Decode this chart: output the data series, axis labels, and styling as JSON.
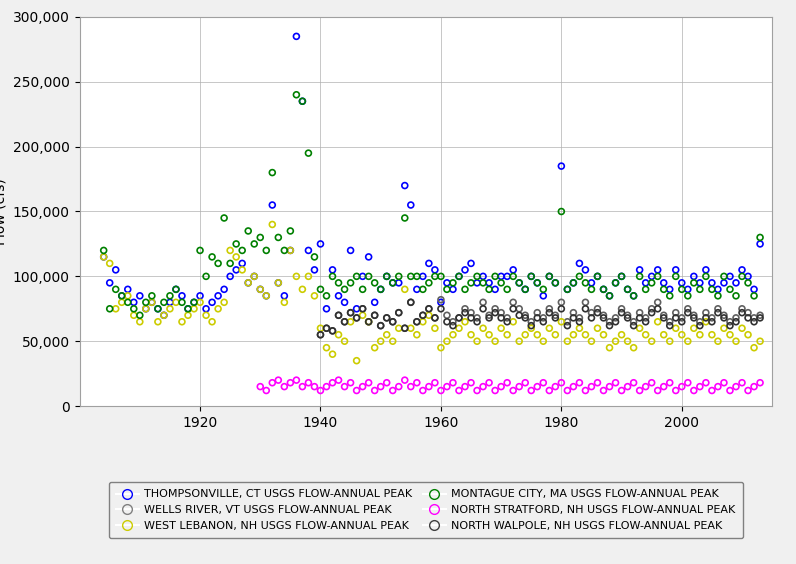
{
  "xlabel": "",
  "xlim": [
    1900,
    2015
  ],
  "ylim": [
    0,
    300000
  ],
  "yticks": [
    0,
    50000,
    100000,
    150000,
    200000,
    250000,
    300000
  ],
  "ytick_labels": [
    "0",
    "50,000",
    "100,000",
    "150,000",
    "200,000",
    "250,000",
    "300,000"
  ],
  "xticks": [
    1920,
    1940,
    1960,
    1980,
    2000
  ],
  "background_color": "#f0f0f0",
  "plot_bg_color": "#ffffff",
  "series": [
    {
      "name": "THOMPSONVILLE, CT USGS FLOW-ANNUAL PEAK",
      "color": "blue",
      "marker": "o",
      "years": [
        1904,
        1905,
        1906,
        1907,
        1908,
        1909,
        1910,
        1911,
        1912,
        1913,
        1914,
        1915,
        1916,
        1917,
        1918,
        1919,
        1920,
        1921,
        1922,
        1923,
        1924,
        1925,
        1926,
        1927,
        1928,
        1929,
        1930,
        1931,
        1932,
        1933,
        1934,
        1935,
        1936,
        1937,
        1938,
        1939,
        1940,
        1941,
        1942,
        1943,
        1944,
        1945,
        1946,
        1947,
        1948,
        1949,
        1950,
        1951,
        1952,
        1953,
        1954,
        1955,
        1956,
        1957,
        1958,
        1959,
        1960,
        1961,
        1962,
        1963,
        1964,
        1965,
        1966,
        1967,
        1968,
        1969,
        1970,
        1971,
        1972,
        1973,
        1974,
        1975,
        1976,
        1977,
        1978,
        1979,
        1980,
        1981,
        1982,
        1983,
        1984,
        1985,
        1986,
        1987,
        1988,
        1989,
        1990,
        1991,
        1992,
        1993,
        1994,
        1995,
        1996,
        1997,
        1998,
        1999,
        2000,
        2001,
        2002,
        2003,
        2004,
        2005,
        2006,
        2007,
        2008,
        2009,
        2010,
        2011,
        2012,
        2013
      ],
      "values": [
        115000,
        95000,
        105000,
        85000,
        90000,
        80000,
        85000,
        75000,
        80000,
        75000,
        70000,
        80000,
        90000,
        85000,
        75000,
        80000,
        85000,
        75000,
        80000,
        85000,
        90000,
        100000,
        105000,
        110000,
        95000,
        100000,
        90000,
        85000,
        155000,
        95000,
        85000,
        120000,
        285000,
        235000,
        120000,
        105000,
        125000,
        75000,
        105000,
        85000,
        80000,
        120000,
        75000,
        100000,
        115000,
        80000,
        90000,
        100000,
        95000,
        95000,
        170000,
        155000,
        90000,
        100000,
        110000,
        105000,
        80000,
        95000,
        90000,
        100000,
        105000,
        110000,
        95000,
        100000,
        95000,
        90000,
        100000,
        100000,
        105000,
        95000,
        90000,
        100000,
        95000,
        85000,
        100000,
        95000,
        185000,
        90000,
        95000,
        110000,
        105000,
        95000,
        100000,
        90000,
        85000,
        95000,
        100000,
        90000,
        85000,
        105000,
        95000,
        100000,
        105000,
        95000,
        90000,
        105000,
        95000,
        90000,
        100000,
        95000,
        105000,
        95000,
        90000,
        95000,
        100000,
        95000,
        105000,
        100000,
        90000,
        125000
      ]
    },
    {
      "name": "WELLS RIVER, VT USGS FLOW-ANNUAL PEAK",
      "color": "#606060",
      "marker": "o",
      "years": [
        1940,
        1941,
        1942,
        1943,
        1944,
        1945,
        1946,
        1947,
        1948,
        1949,
        1950,
        1951,
        1952,
        1953,
        1954,
        1955,
        1956,
        1957,
        1958,
        1959,
        1960,
        1961,
        1962,
        1963,
        1964,
        1965,
        1966,
        1967,
        1968,
        1969,
        1970,
        1971,
        1972,
        1973,
        1974,
        1975,
        1976,
        1977,
        1978,
        1979,
        1980,
        1981,
        1982,
        1983,
        1984,
        1985,
        1986,
        1987,
        1988,
        1989,
        1990,
        1991,
        1992,
        1993,
        1994,
        1995,
        1996,
        1997,
        1998,
        1999,
        2000,
        2001,
        2002,
        2003,
        2004,
        2005,
        2006,
        2007,
        2008,
        2009,
        2010,
        2011,
        2012,
        2013
      ],
      "values": [
        55000,
        60000,
        58000,
        70000,
        65000,
        72000,
        68000,
        75000,
        65000,
        70000,
        62000,
        68000,
        65000,
        72000,
        60000,
        80000,
        65000,
        70000,
        75000,
        68000,
        82000,
        70000,
        65000,
        68000,
        75000,
        72000,
        68000,
        80000,
        70000,
        75000,
        72000,
        68000,
        80000,
        75000,
        70000,
        65000,
        72000,
        68000,
        75000,
        70000,
        80000,
        65000,
        72000,
        68000,
        80000,
        72000,
        75000,
        70000,
        65000,
        68000,
        75000,
        70000,
        65000,
        72000,
        68000,
        75000,
        80000,
        70000,
        65000,
        72000,
        68000,
        75000,
        70000,
        65000,
        72000,
        68000,
        75000,
        70000,
        65000,
        68000,
        75000,
        72000,
        68000,
        70000
      ]
    },
    {
      "name": "WEST LEBANON, NH USGS FLOW-ANNUAL PEAK",
      "color": "#cccc00",
      "marker": "o",
      "years": [
        1904,
        1905,
        1906,
        1907,
        1908,
        1909,
        1910,
        1911,
        1912,
        1913,
        1914,
        1915,
        1916,
        1917,
        1918,
        1919,
        1920,
        1921,
        1922,
        1923,
        1924,
        1925,
        1926,
        1927,
        1928,
        1929,
        1930,
        1931,
        1932,
        1933,
        1934,
        1935,
        1936,
        1937,
        1938,
        1939,
        1940,
        1941,
        1942,
        1943,
        1944,
        1945,
        1946,
        1947,
        1948,
        1949,
        1950,
        1951,
        1952,
        1953,
        1954,
        1955,
        1956,
        1957,
        1958,
        1959,
        1960,
        1961,
        1962,
        1963,
        1964,
        1965,
        1966,
        1967,
        1968,
        1969,
        1970,
        1971,
        1972,
        1973,
        1974,
        1975,
        1976,
        1977,
        1978,
        1979,
        1980,
        1981,
        1982,
        1983,
        1984,
        1985,
        1986,
        1987,
        1988,
        1989,
        1990,
        1991,
        1992,
        1993,
        1994,
        1995,
        1996,
        1997,
        1998,
        1999,
        2000,
        2001,
        2002,
        2003,
        2004,
        2005,
        2006,
        2007,
        2008,
        2009,
        2010,
        2011,
        2012,
        2013
      ],
      "values": [
        115000,
        110000,
        75000,
        80000,
        85000,
        70000,
        65000,
        75000,
        80000,
        65000,
        70000,
        75000,
        80000,
        65000,
        70000,
        75000,
        80000,
        70000,
        65000,
        75000,
        80000,
        120000,
        115000,
        105000,
        95000,
        100000,
        90000,
        85000,
        140000,
        95000,
        80000,
        120000,
        100000,
        90000,
        100000,
        85000,
        60000,
        45000,
        40000,
        55000,
        50000,
        65000,
        35000,
        70000,
        65000,
        45000,
        50000,
        55000,
        50000,
        60000,
        90000,
        60000,
        55000,
        65000,
        70000,
        60000,
        45000,
        50000,
        55000,
        60000,
        65000,
        55000,
        50000,
        60000,
        55000,
        50000,
        60000,
        55000,
        65000,
        50000,
        55000,
        60000,
        55000,
        50000,
        60000,
        55000,
        65000,
        50000,
        55000,
        60000,
        55000,
        50000,
        60000,
        55000,
        45000,
        50000,
        55000,
        50000,
        45000,
        60000,
        55000,
        50000,
        65000,
        55000,
        50000,
        60000,
        55000,
        50000,
        60000,
        55000,
        65000,
        55000,
        50000,
        60000,
        55000,
        50000,
        60000,
        55000,
        45000,
        50000
      ]
    },
    {
      "name": "MONTAGUE CITY, MA USGS FLOW-ANNUAL PEAK",
      "color": "green",
      "marker": "o",
      "years": [
        1904,
        1905,
        1906,
        1907,
        1908,
        1909,
        1910,
        1911,
        1912,
        1913,
        1914,
        1915,
        1916,
        1917,
        1918,
        1919,
        1920,
        1921,
        1922,
        1923,
        1924,
        1925,
        1926,
        1927,
        1928,
        1929,
        1930,
        1931,
        1932,
        1933,
        1934,
        1935,
        1936,
        1937,
        1938,
        1939,
        1940,
        1941,
        1942,
        1943,
        1944,
        1945,
        1946,
        1947,
        1948,
        1949,
        1950,
        1951,
        1952,
        1953,
        1954,
        1955,
        1956,
        1957,
        1958,
        1959,
        1960,
        1961,
        1962,
        1963,
        1964,
        1965,
        1966,
        1967,
        1968,
        1969,
        1970,
        1971,
        1972,
        1973,
        1974,
        1975,
        1976,
        1977,
        1978,
        1979,
        1980,
        1981,
        1982,
        1983,
        1984,
        1985,
        1986,
        1987,
        1988,
        1989,
        1990,
        1991,
        1992,
        1993,
        1994,
        1995,
        1996,
        1997,
        1998,
        1999,
        2000,
        2001,
        2002,
        2003,
        2004,
        2005,
        2006,
        2007,
        2008,
        2009,
        2010,
        2011,
        2012,
        2013
      ],
      "values": [
        120000,
        75000,
        90000,
        85000,
        80000,
        75000,
        70000,
        80000,
        85000,
        75000,
        80000,
        85000,
        90000,
        80000,
        75000,
        80000,
        120000,
        100000,
        115000,
        110000,
        145000,
        110000,
        125000,
        120000,
        135000,
        125000,
        130000,
        120000,
        180000,
        130000,
        120000,
        135000,
        240000,
        235000,
        195000,
        115000,
        90000,
        85000,
        100000,
        95000,
        90000,
        95000,
        100000,
        90000,
        100000,
        95000,
        90000,
        100000,
        95000,
        100000,
        145000,
        100000,
        100000,
        90000,
        95000,
        100000,
        100000,
        90000,
        95000,
        100000,
        90000,
        95000,
        100000,
        95000,
        90000,
        100000,
        95000,
        90000,
        100000,
        95000,
        90000,
        100000,
        95000,
        90000,
        100000,
        95000,
        150000,
        90000,
        95000,
        100000,
        95000,
        90000,
        100000,
        90000,
        85000,
        95000,
        100000,
        90000,
        85000,
        100000,
        90000,
        95000,
        100000,
        90000,
        85000,
        100000,
        90000,
        85000,
        95000,
        90000,
        100000,
        90000,
        85000,
        100000,
        90000,
        85000,
        100000,
        95000,
        85000,
        130000
      ]
    },
    {
      "name": "NORTH STRATFORD, NH USGS FLOW-ANNUAL PEAK",
      "color": "magenta",
      "marker": "o",
      "years": [
        1930,
        1931,
        1932,
        1933,
        1934,
        1935,
        1936,
        1937,
        1938,
        1939,
        1940,
        1941,
        1942,
        1943,
        1944,
        1945,
        1946,
        1947,
        1948,
        1949,
        1950,
        1951,
        1952,
        1953,
        1954,
        1955,
        1956,
        1957,
        1958,
        1959,
        1960,
        1961,
        1962,
        1963,
        1964,
        1965,
        1966,
        1967,
        1968,
        1969,
        1970,
        1971,
        1972,
        1973,
        1974,
        1975,
        1976,
        1977,
        1978,
        1979,
        1980,
        1981,
        1982,
        1983,
        1984,
        1985,
        1986,
        1987,
        1988,
        1989,
        1990,
        1991,
        1992,
        1993,
        1994,
        1995,
        1996,
        1997,
        1998,
        1999,
        2000,
        2001,
        2002,
        2003,
        2004,
        2005,
        2006,
        2007,
        2008,
        2009,
        2010,
        2011,
        2012,
        2013
      ],
      "values": [
        15000,
        12000,
        18000,
        20000,
        15000,
        18000,
        20000,
        15000,
        18000,
        15000,
        12000,
        15000,
        18000,
        20000,
        15000,
        18000,
        12000,
        15000,
        18000,
        12000,
        15000,
        18000,
        12000,
        15000,
        20000,
        15000,
        18000,
        12000,
        15000,
        18000,
        12000,
        15000,
        18000,
        12000,
        15000,
        18000,
        12000,
        15000,
        18000,
        12000,
        15000,
        18000,
        12000,
        15000,
        18000,
        12000,
        15000,
        18000,
        12000,
        15000,
        18000,
        12000,
        15000,
        18000,
        12000,
        15000,
        18000,
        12000,
        15000,
        18000,
        12000,
        15000,
        18000,
        12000,
        15000,
        18000,
        12000,
        15000,
        18000,
        12000,
        15000,
        18000,
        12000,
        15000,
        18000,
        12000,
        15000,
        18000,
        12000,
        15000,
        18000,
        12000,
        15000,
        18000
      ]
    },
    {
      "name": "NORTH WALPOLE, NH USGS FLOW-ANNUAL PEAK",
      "color": "#303030",
      "marker": "o",
      "years": [
        1940,
        1941,
        1942,
        1943,
        1944,
        1945,
        1946,
        1947,
        1948,
        1949,
        1950,
        1951,
        1952,
        1953,
        1954,
        1955,
        1956,
        1957,
        1958,
        1959,
        1960,
        1961,
        1962,
        1963,
        1964,
        1965,
        1966,
        1967,
        1968,
        1969,
        1970,
        1971,
        1972,
        1973,
        1974,
        1975,
        1976,
        1977,
        1978,
        1979,
        1980,
        1981,
        1982,
        1983,
        1984,
        1985,
        1986,
        1987,
        1988,
        1989,
        1990,
        1991,
        1992,
        1993,
        1994,
        1995,
        1996,
        1997,
        1998,
        1999,
        2000,
        2001,
        2002,
        2003,
        2004,
        2005,
        2006,
        2007,
        2008,
        2009,
        2010,
        2011,
        2012,
        2013
      ],
      "values": [
        55000,
        60000,
        58000,
        70000,
        65000,
        72000,
        68000,
        75000,
        65000,
        70000,
        62000,
        68000,
        65000,
        72000,
        60000,
        80000,
        65000,
        70000,
        75000,
        68000,
        75000,
        65000,
        62000,
        68000,
        72000,
        68000,
        65000,
        75000,
        68000,
        72000,
        68000,
        65000,
        75000,
        70000,
        68000,
        62000,
        68000,
        65000,
        72000,
        68000,
        75000,
        62000,
        68000,
        65000,
        75000,
        68000,
        72000,
        68000,
        62000,
        65000,
        72000,
        68000,
        62000,
        68000,
        65000,
        72000,
        75000,
        68000,
        62000,
        68000,
        65000,
        72000,
        68000,
        62000,
        68000,
        65000,
        72000,
        68000,
        62000,
        65000,
        72000,
        68000,
        65000,
        68000
      ]
    }
  ]
}
